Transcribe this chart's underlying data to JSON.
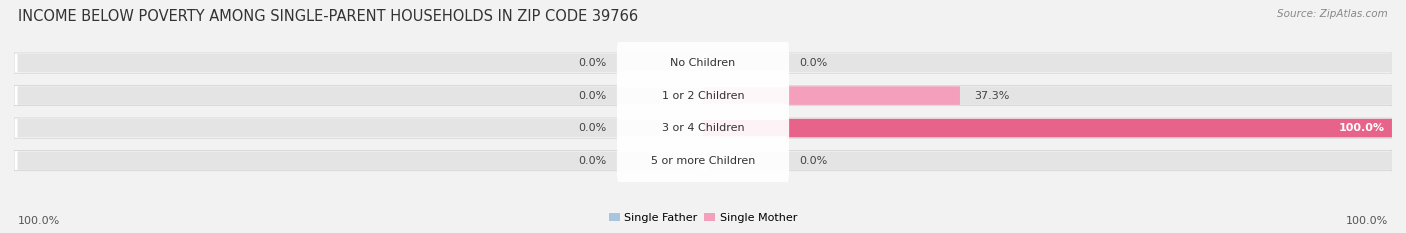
{
  "title": "INCOME BELOW POVERTY AMONG SINGLE-PARENT HOUSEHOLDS IN ZIP CODE 39766",
  "source": "Source: ZipAtlas.com",
  "categories": [
    "No Children",
    "1 or 2 Children",
    "3 or 4 Children",
    "5 or more Children"
  ],
  "single_father": [
    0.0,
    0.0,
    0.0,
    0.0
  ],
  "single_mother": [
    0.0,
    37.3,
    100.0,
    0.0
  ],
  "father_color": "#a8c4de",
  "mother_color": "#f093b0",
  "bar_bg_color": "#e4e4e4",
  "bg_color": "#f2f2f2",
  "title_fontsize": 10.5,
  "source_fontsize": 7.5,
  "label_fontsize": 8,
  "cat_fontsize": 8,
  "tick_fontsize": 8,
  "bar_height": 0.62,
  "x_max": 100.0,
  "bottom_left_label": "100.0%",
  "bottom_right_label": "100.0%",
  "mother_color_full": "#e8638a",
  "mother_color_partial": "#f4a0bc"
}
